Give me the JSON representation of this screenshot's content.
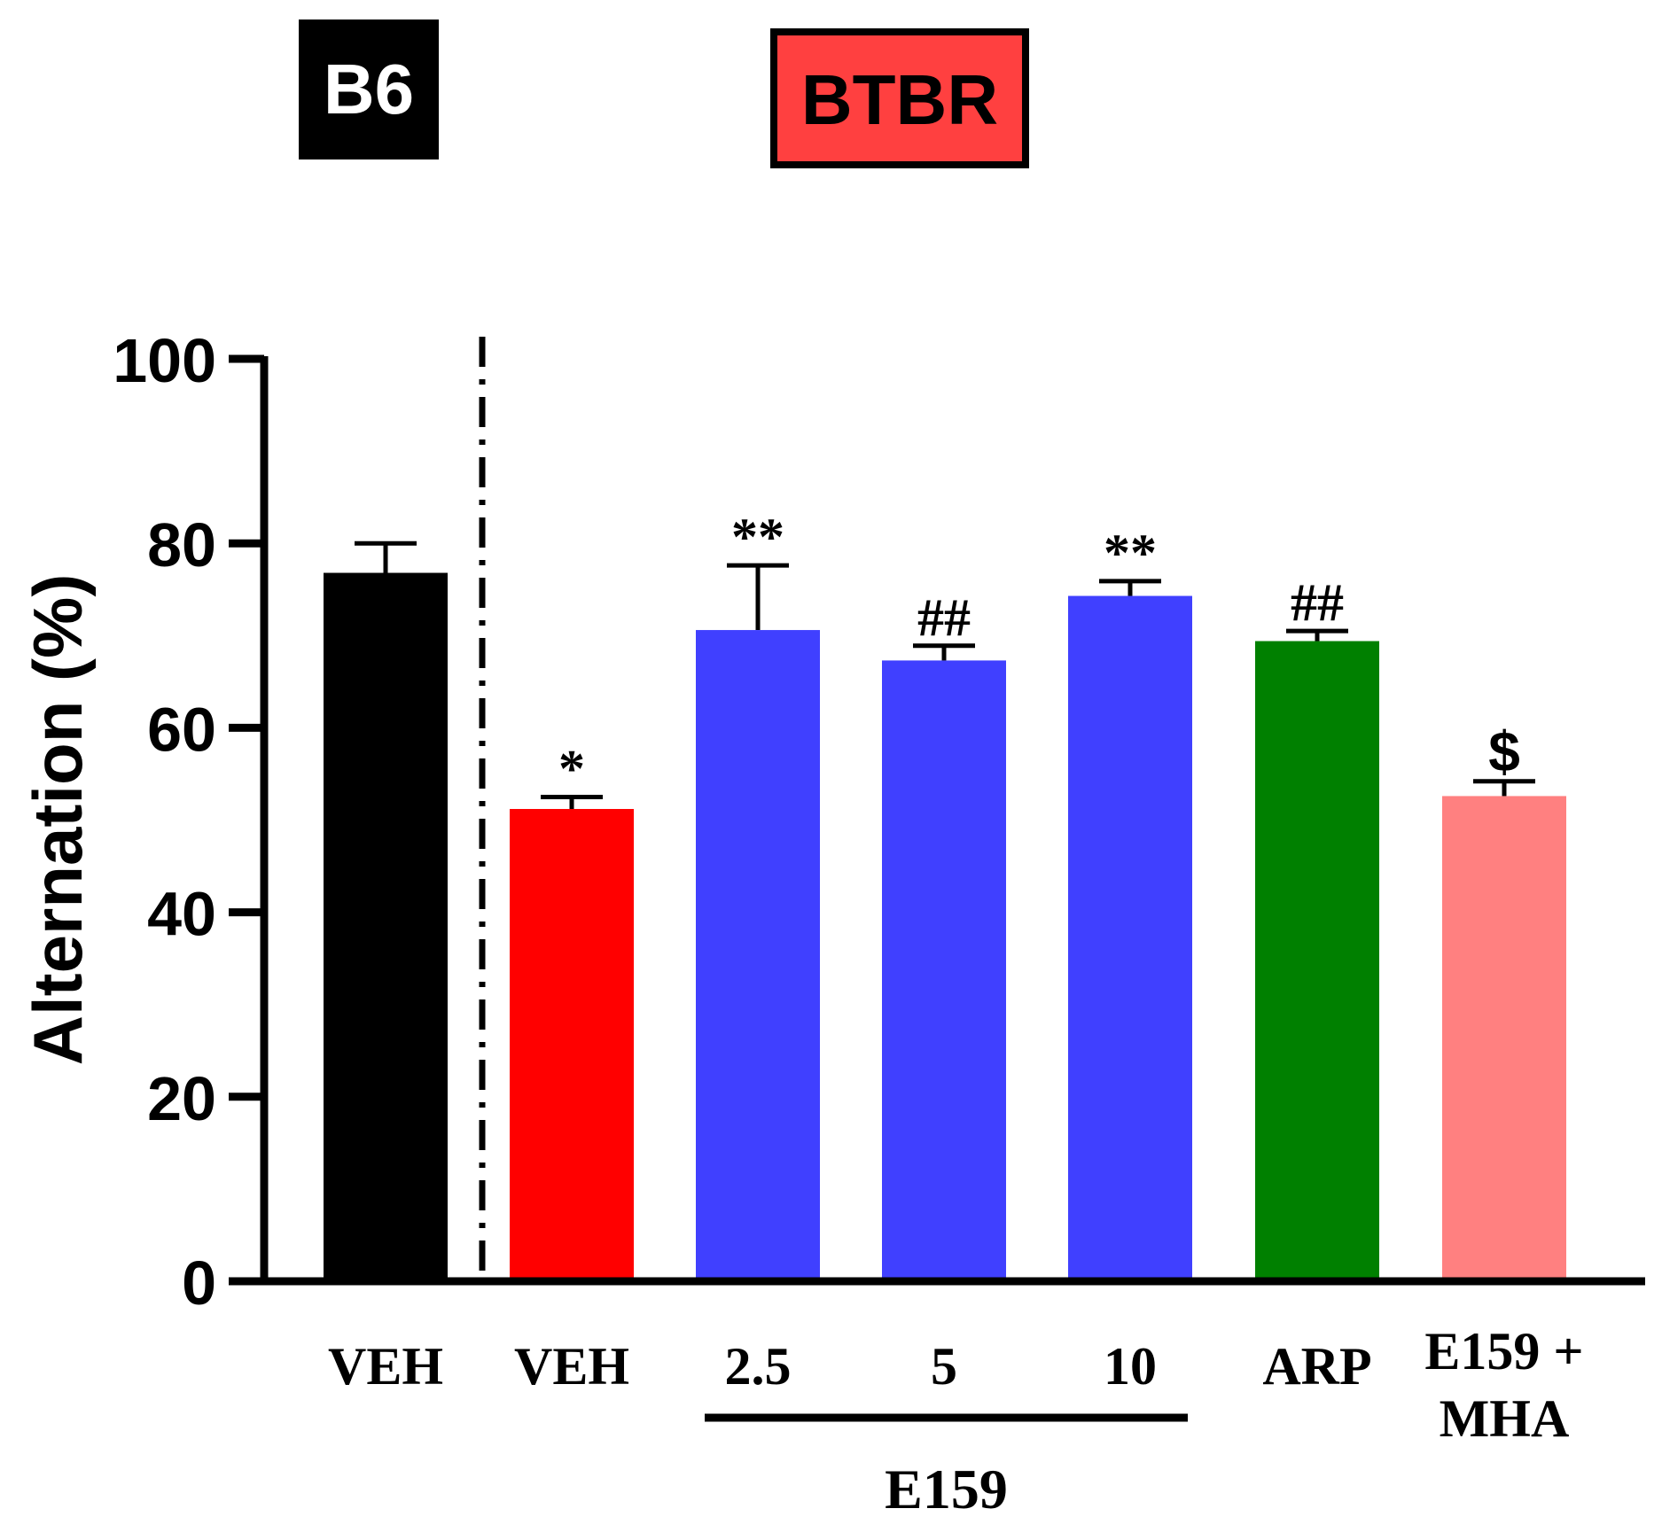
{
  "chart_data": {
    "type": "bar",
    "title": "",
    "xlabel": "",
    "ylabel": "Alternation (%)",
    "ylim": [
      0,
      100
    ],
    "yticks": [
      0,
      20,
      40,
      60,
      80,
      100
    ],
    "grid": false,
    "group_labels": [
      {
        "text": "B6",
        "fill": "#000000",
        "text_color": "#ffffff"
      },
      {
        "text": "BTBR",
        "fill": "#ff4040",
        "text_color": "#000000"
      }
    ],
    "categories": [
      "VEH",
      "VEH",
      "2.5",
      "5",
      "10",
      "ARP",
      "E159 + MHA"
    ],
    "category_lines": [
      [
        "VEH"
      ],
      [
        "VEH"
      ],
      [
        "2.5"
      ],
      [
        "5"
      ],
      [
        "10"
      ],
      [
        "ARP"
      ],
      [
        "E159 +",
        "MHA"
      ]
    ],
    "bracket_label": "E159",
    "bracket_span": [
      2,
      4
    ],
    "bars": [
      {
        "category": "VEH",
        "group": "B6",
        "value": 76.8,
        "error": 3.2,
        "color": "#000000",
        "annotation": ""
      },
      {
        "category": "VEH",
        "group": "BTBR",
        "value": 51.2,
        "error": 1.3,
        "color": "#ff0000",
        "annotation": "*"
      },
      {
        "category": "2.5",
        "group": "BTBR",
        "value": 70.6,
        "error": 7.0,
        "color": "#4040ff",
        "annotation": "**"
      },
      {
        "category": "5",
        "group": "BTBR",
        "value": 67.3,
        "error": 1.6,
        "color": "#4040ff",
        "annotation": "##"
      },
      {
        "category": "10",
        "group": "BTBR",
        "value": 74.3,
        "error": 1.6,
        "color": "#4040ff",
        "annotation": "**"
      },
      {
        "category": "ARP",
        "group": "BTBR",
        "value": 69.4,
        "error": 1.1,
        "color": "#008000",
        "annotation": "##"
      },
      {
        "category": "E159 + MHA",
        "group": "BTBR",
        "value": 52.6,
        "error": 1.6,
        "color": "#ff8080",
        "annotation": "$"
      }
    ]
  }
}
